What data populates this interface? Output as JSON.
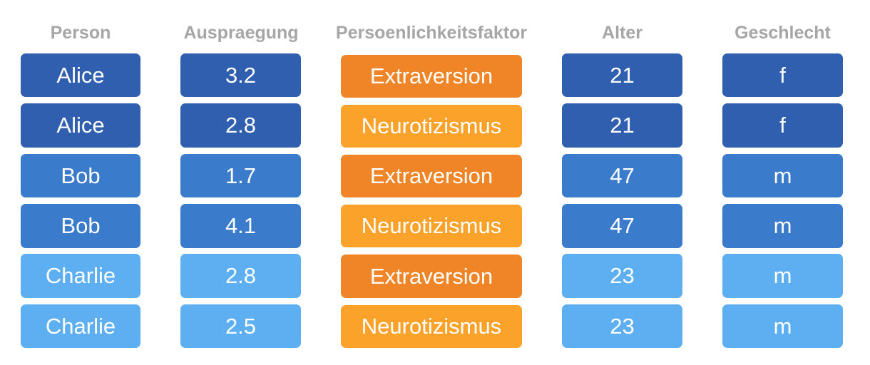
{
  "headers": {
    "person": "Person",
    "value": "Auspraegung",
    "factor": "Persoenlichkeitsfaktor",
    "age": "Alter",
    "gender": "Geschlecht"
  },
  "colors": {
    "header_text": "#a6a6a6",
    "alice": "#2f5fae",
    "bob": "#3a7bcb",
    "charlie": "#5daff1",
    "extraversion": "#ef8526",
    "neurotizismus": "#fba22b"
  },
  "rows": [
    {
      "person": "Alice",
      "value": "3.2",
      "factor": "Extraversion",
      "age": "21",
      "gender": "f"
    },
    {
      "person": "Alice",
      "value": "2.8",
      "factor": "Neurotizismus",
      "age": "21",
      "gender": "f"
    },
    {
      "person": "Bob",
      "value": "1.7",
      "factor": "Extraversion",
      "age": "47",
      "gender": "m"
    },
    {
      "person": "Bob",
      "value": "4.1",
      "factor": "Neurotizismus",
      "age": "47",
      "gender": "m"
    },
    {
      "person": "Charlie",
      "value": "2.8",
      "factor": "Extraversion",
      "age": "23",
      "gender": "m"
    },
    {
      "person": "Charlie",
      "value": "2.5",
      "factor": "Neurotizismus",
      "age": "23",
      "gender": "m"
    }
  ]
}
